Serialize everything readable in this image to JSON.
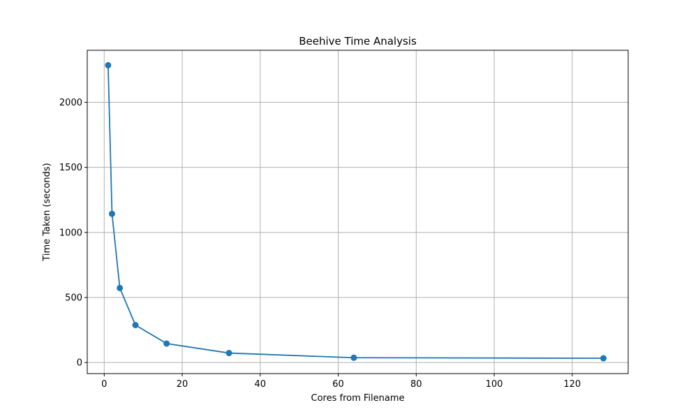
{
  "chart_data": {
    "type": "line",
    "title": "Beehive Time Analysis",
    "xlabel": "Cores from Filename",
    "ylabel": "Time Taken (seconds)",
    "xlim": [
      -4.35,
      134.35
    ],
    "ylim": [
      -85,
      2400
    ],
    "xticks": [
      0,
      20,
      40,
      60,
      80,
      100,
      120
    ],
    "xtick_labels": [
      "0",
      "20",
      "40",
      "60",
      "80",
      "100",
      "120"
    ],
    "yticks": [
      0,
      500,
      1000,
      1500,
      2000
    ],
    "ytick_labels": [
      "0",
      "500",
      "1000",
      "1500",
      "2000"
    ],
    "grid": true,
    "legend": "none",
    "series": [
      {
        "color": "#1f77b4",
        "marker": "circle",
        "x": [
          1,
          2,
          4,
          8,
          16,
          32,
          64,
          128
        ],
        "y": [
          2285,
          1143,
          573,
          288,
          146,
          73,
          37,
          33
        ]
      }
    ]
  }
}
